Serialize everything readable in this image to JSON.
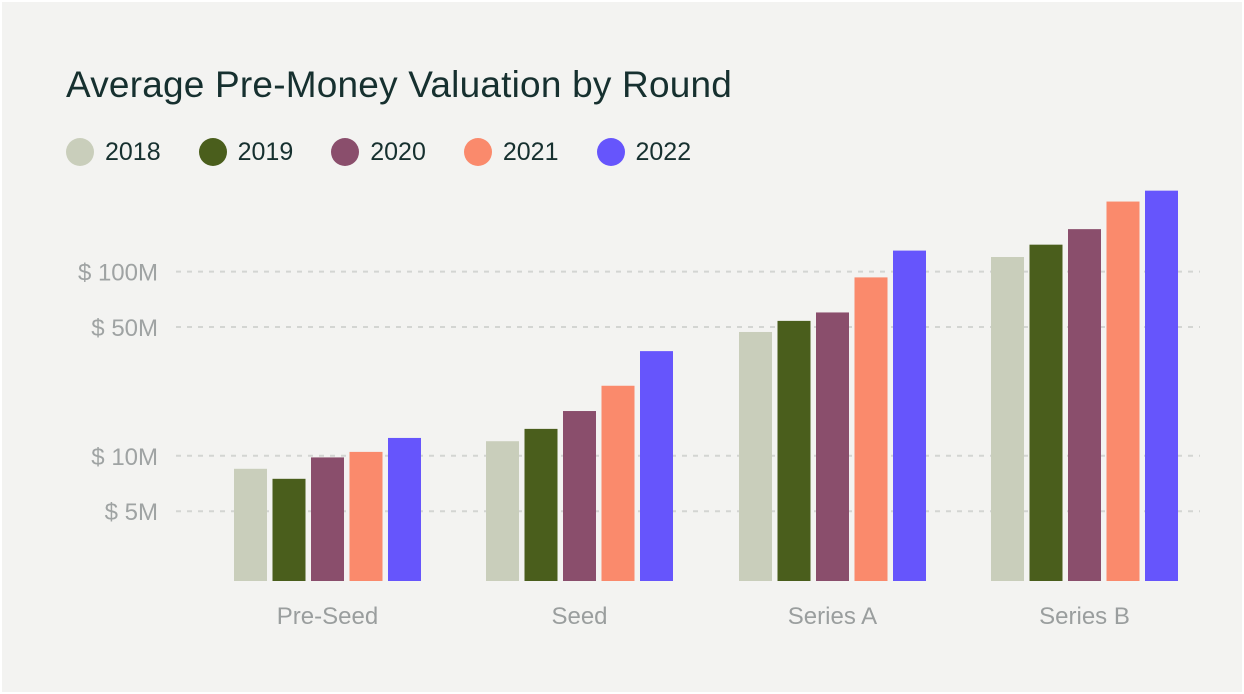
{
  "chart_data": {
    "type": "bar",
    "title": "Average Pre-Money Valuation by Round",
    "xlabel": "",
    "ylabel": "",
    "y_scale": "log",
    "ylim": [
      2,
      290
    ],
    "yticks": [
      {
        "value": 5,
        "label": "$ 5M"
      },
      {
        "value": 10,
        "label": "$ 10M"
      },
      {
        "value": 50,
        "label": "$ 50M"
      },
      {
        "value": 100,
        "label": "$ 100M"
      }
    ],
    "grid": "horizontal dashed",
    "legend_position": "top-left",
    "categories": [
      "Pre-Seed",
      "Seed",
      "Series A",
      "Series B"
    ],
    "series": [
      {
        "name": "2018",
        "color": "#c9cebb",
        "values": [
          8.5,
          12,
          47,
          120
        ]
      },
      {
        "name": "2019",
        "color": "#4a5e1c",
        "values": [
          7.5,
          14,
          54,
          140
        ]
      },
      {
        "name": "2020",
        "color": "#8a4e6c",
        "values": [
          9.8,
          17.5,
          60,
          170
        ]
      },
      {
        "name": "2021",
        "color": "#fa8a6c",
        "values": [
          10.5,
          24,
          93,
          240
        ]
      },
      {
        "name": "2022",
        "color": "#6655fc",
        "values": [
          12.5,
          37,
          130,
          275
        ]
      }
    ]
  }
}
